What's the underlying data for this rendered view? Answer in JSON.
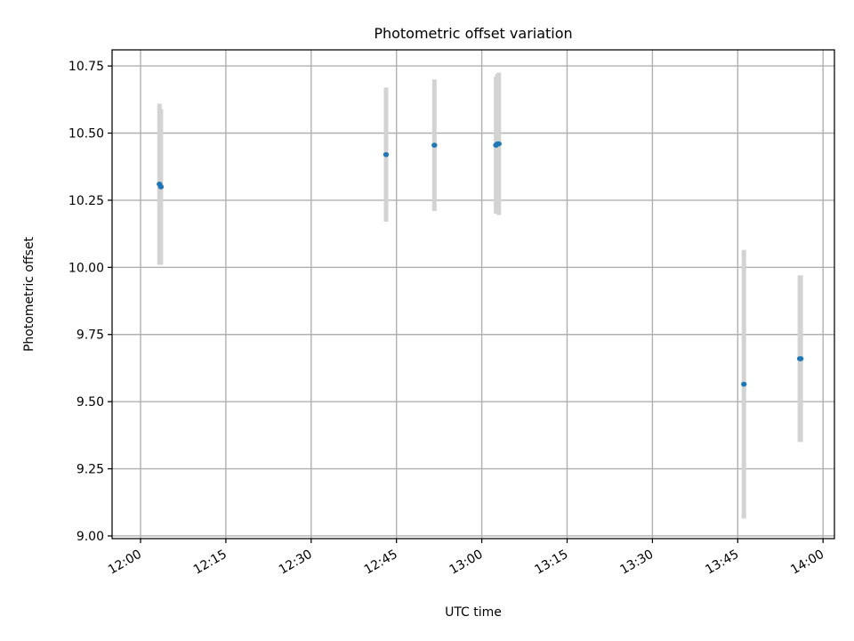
{
  "chart_data": {
    "type": "scatter",
    "title": "Photometric offset variation",
    "xlabel": "UTC time",
    "ylabel": "Photometric offset",
    "x_axis_type": "time",
    "xlim": [
      "11:55",
      "14:02"
    ],
    "ylim": [
      8.99,
      10.81
    ],
    "x_ticks": [
      "12:00",
      "12:15",
      "12:30",
      "12:45",
      "13:00",
      "13:15",
      "13:30",
      "13:45",
      "14:00"
    ],
    "y_ticks": [
      "9.00",
      "9.25",
      "9.50",
      "9.75",
      "10.00",
      "10.25",
      "10.50",
      "10.75"
    ],
    "grid": true,
    "legend": false,
    "colors": {
      "points": "#1f77b4",
      "error_bars": "#d3d3d3",
      "grid": "#b0b0b0",
      "axes": "#000000"
    },
    "series": [
      {
        "points": [
          {
            "x": "12:03:20",
            "y": 10.31,
            "yerr": 0.3
          },
          {
            "x": "12:03:35",
            "y": 10.3,
            "yerr": 0.29
          },
          {
            "x": "12:43:10",
            "y": 10.42,
            "yerr": 0.25
          },
          {
            "x": "12:51:40",
            "y": 10.455,
            "yerr": 0.245
          },
          {
            "x": "13:02:30",
            "y": 10.455,
            "yerr": 0.255
          },
          {
            "x": "13:02:45",
            "y": 10.46,
            "yerr": 0.26
          },
          {
            "x": "13:03:00",
            "y": 10.46,
            "yerr": 0.265
          },
          {
            "x": "13:46:05",
            "y": 9.565,
            "yerr": 0.5
          },
          {
            "x": "13:55:55",
            "y": 9.66,
            "yerr": 0.31
          },
          {
            "x": "13:56:05",
            "y": 9.66,
            "yerr": 0.31
          }
        ]
      }
    ]
  }
}
